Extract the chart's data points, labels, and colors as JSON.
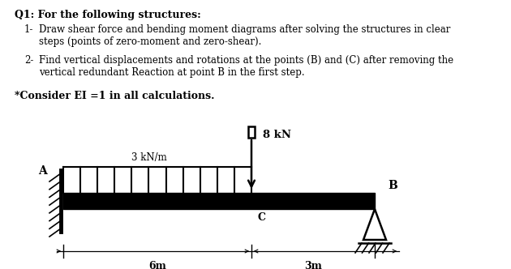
{
  "title": "Q1: For the following structures:",
  "item1_num": "1-",
  "item1_text": "Draw shear force and bending moment diagrams after solving the structures in clear\nsteps (points of zero-moment and zero-shear).",
  "item2_num": "2-",
  "item2_text": "Find vertical displacements and rotations at the points (B) and (C) after removing the\nvertical redundant Reaction at point B in the first step.",
  "note": "*Consider EI =1 in all calculations.",
  "label_8kN": "8 kN",
  "label_3kNm": "3 kN/m",
  "label_A": "A",
  "label_B": "B",
  "label_C": "C",
  "label_6m": "6m",
  "label_3m": "3m",
  "bg_color": "#ffffff"
}
